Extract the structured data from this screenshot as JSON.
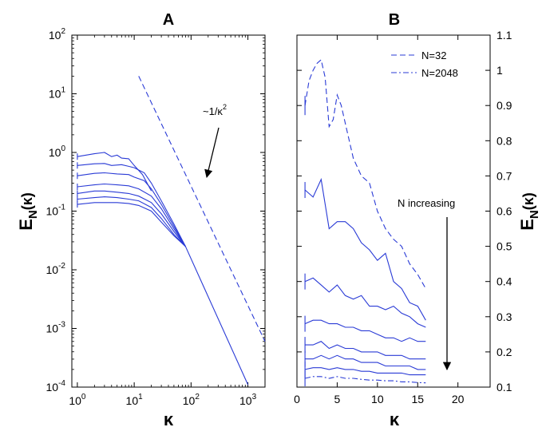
{
  "figure": {
    "panel_a_title": "A",
    "panel_b_title": "B",
    "ylabel_main": "E",
    "ylabel_sub": "N",
    "ylabel_paren": "(κ)",
    "xlabel": "κ",
    "annotation_scaling_prefix": "~1/κ",
    "annotation_scaling_exp": "2",
    "annotation_trend": "N increasing",
    "legend": [
      "N=32",
      "N=2048"
    ],
    "colors": {
      "curves": "#2a3bd6",
      "axes": "#000000"
    }
  },
  "chart_data": [
    {
      "panel": "A",
      "type": "line",
      "xscale": "log",
      "yscale": "log",
      "xlim": [
        0.8,
        2000
      ],
      "ylim": [
        0.0001,
        100
      ],
      "x_ticks": [
        {
          "base": "10",
          "exp": "0",
          "v": 1
        },
        {
          "base": "10",
          "exp": "1",
          "v": 10
        },
        {
          "base": "10",
          "exp": "2",
          "v": 100
        },
        {
          "base": "10",
          "exp": "3",
          "v": 1000
        }
      ],
      "y_ticks": [
        {
          "base": "10",
          "exp": "-4",
          "v": 0.0001
        },
        {
          "base": "10",
          "exp": "-3",
          "v": 0.001
        },
        {
          "base": "10",
          "exp": "-2",
          "v": 0.01
        },
        {
          "base": "10",
          "exp": "-1",
          "v": 0.1
        },
        {
          "base": "10",
          "exp": "0",
          "v": 1
        },
        {
          "base": "10",
          "exp": "1",
          "v": 10
        },
        {
          "base": "10",
          "exp": "2",
          "v": 100
        }
      ],
      "reference_line": {
        "style": "dashed",
        "x": [
          12,
          2000
        ],
        "y": [
          20,
          0.0006
        ]
      },
      "series": [
        {
          "style": "solid",
          "x": [
            1,
            2,
            3,
            4,
            5,
            6,
            8,
            10,
            14,
            20
          ],
          "y": [
            0.85,
            0.95,
            1.0,
            0.85,
            0.9,
            0.8,
            0.78,
            0.6,
            0.42,
            0.22
          ]
        },
        {
          "style": "solid",
          "x": [
            1,
            2,
            3,
            4,
            6,
            8,
            10,
            15,
            20,
            30,
            50,
            80
          ],
          "y": [
            0.6,
            0.64,
            0.65,
            0.6,
            0.62,
            0.58,
            0.55,
            0.45,
            0.3,
            0.15,
            0.06,
            0.025
          ]
        },
        {
          "style": "solid",
          "x": [
            1,
            2,
            3,
            5,
            8,
            10,
            15,
            20,
            30,
            50,
            80
          ],
          "y": [
            0.4,
            0.44,
            0.45,
            0.43,
            0.42,
            0.38,
            0.33,
            0.24,
            0.13,
            0.055,
            0.025
          ]
        },
        {
          "style": "solid",
          "x": [
            1,
            2,
            3,
            5,
            8,
            12,
            20,
            30,
            50,
            80
          ],
          "y": [
            0.26,
            0.28,
            0.29,
            0.28,
            0.27,
            0.24,
            0.18,
            0.11,
            0.05,
            0.025
          ]
        },
        {
          "style": "solid",
          "x": [
            1,
            2,
            3,
            5,
            8,
            12,
            20,
            30,
            50,
            80
          ],
          "y": [
            0.2,
            0.22,
            0.22,
            0.21,
            0.2,
            0.18,
            0.14,
            0.09,
            0.045,
            0.025
          ]
        },
        {
          "style": "solid",
          "x": [
            1,
            2,
            3,
            5,
            8,
            12,
            20,
            30,
            50,
            80
          ],
          "y": [
            0.16,
            0.17,
            0.175,
            0.17,
            0.16,
            0.15,
            0.115,
            0.075,
            0.04,
            0.025
          ]
        },
        {
          "style": "solid",
          "x": [
            1,
            2,
            3,
            5,
            8,
            12,
            20,
            30,
            50,
            80,
            1000
          ],
          "y": [
            0.13,
            0.14,
            0.14,
            0.14,
            0.135,
            0.125,
            0.1,
            0.065,
            0.038,
            0.025,
            0.00011
          ]
        }
      ]
    },
    {
      "panel": "B",
      "type": "line",
      "xlim": [
        0,
        24
      ],
      "ylim": [
        0.1,
        1.1
      ],
      "x_ticks": [
        "0",
        "5",
        "10",
        "15",
        "20"
      ],
      "y_ticks": [
        "0.1",
        "0.2",
        "0.3",
        "0.4",
        "0.5",
        "0.6",
        "0.7",
        "0.8",
        "0.9",
        "1",
        "1.1"
      ],
      "series": [
        {
          "name": "N=32",
          "style": "dashed",
          "x": [
            1,
            1.5,
            2,
            2.5,
            3,
            3.5,
            4,
            4.5,
            5,
            5.5,
            6,
            7,
            8,
            9,
            10,
            11,
            12,
            13,
            14,
            15,
            16
          ],
          "y": [
            0.9,
            0.97,
            1.0,
            1.02,
            1.03,
            0.98,
            0.84,
            0.86,
            0.93,
            0.9,
            0.85,
            0.75,
            0.7,
            0.68,
            0.6,
            0.55,
            0.52,
            0.5,
            0.45,
            0.42,
            0.38
          ]
        },
        {
          "style": "solid",
          "x": [
            1,
            2,
            3,
            4,
            5,
            6,
            7,
            8,
            9,
            10,
            11,
            12,
            13,
            14,
            15,
            16
          ],
          "y": [
            0.66,
            0.64,
            0.69,
            0.55,
            0.57,
            0.57,
            0.55,
            0.51,
            0.49,
            0.46,
            0.48,
            0.4,
            0.38,
            0.34,
            0.33,
            0.29
          ]
        },
        {
          "style": "solid",
          "x": [
            1,
            2,
            3,
            4,
            5,
            6,
            7,
            8,
            9,
            10,
            11,
            12,
            13,
            14,
            15,
            16
          ],
          "y": [
            0.4,
            0.41,
            0.39,
            0.37,
            0.39,
            0.36,
            0.35,
            0.36,
            0.33,
            0.33,
            0.32,
            0.33,
            0.31,
            0.3,
            0.28,
            0.27
          ]
        },
        {
          "style": "solid",
          "x": [
            1,
            2,
            3,
            4,
            5,
            6,
            7,
            8,
            9,
            10,
            11,
            12,
            13,
            14,
            15,
            16
          ],
          "y": [
            0.28,
            0.29,
            0.29,
            0.28,
            0.28,
            0.27,
            0.27,
            0.26,
            0.26,
            0.25,
            0.24,
            0.24,
            0.23,
            0.24,
            0.23,
            0.23
          ]
        },
        {
          "style": "solid",
          "x": [
            1,
            2,
            3,
            4,
            5,
            6,
            7,
            8,
            9,
            10,
            11,
            12,
            13,
            14,
            15,
            16
          ],
          "y": [
            0.22,
            0.22,
            0.23,
            0.21,
            0.22,
            0.21,
            0.21,
            0.2,
            0.2,
            0.2,
            0.19,
            0.19,
            0.19,
            0.18,
            0.18,
            0.18
          ]
        },
        {
          "style": "solid",
          "x": [
            1,
            2,
            3,
            4,
            5,
            6,
            7,
            8,
            9,
            10,
            11,
            12,
            13,
            14,
            15,
            16
          ],
          "y": [
            0.18,
            0.18,
            0.19,
            0.18,
            0.19,
            0.18,
            0.18,
            0.17,
            0.17,
            0.17,
            0.16,
            0.16,
            0.16,
            0.16,
            0.15,
            0.15
          ]
        },
        {
          "style": "solid",
          "x": [
            1,
            2,
            3,
            4,
            5,
            6,
            7,
            8,
            9,
            10,
            11,
            12,
            13,
            14,
            15,
            16
          ],
          "y": [
            0.15,
            0.155,
            0.155,
            0.15,
            0.155,
            0.15,
            0.15,
            0.145,
            0.145,
            0.14,
            0.14,
            0.14,
            0.14,
            0.135,
            0.135,
            0.135
          ]
        },
        {
          "name": "N=2048",
          "style": "dashdot",
          "x": [
            1,
            2,
            3,
            4,
            5,
            6,
            7,
            8,
            9,
            10,
            11,
            12,
            13,
            14,
            15,
            16
          ],
          "y": [
            0.125,
            0.13,
            0.13,
            0.125,
            0.13,
            0.125,
            0.125,
            0.122,
            0.12,
            0.12,
            0.118,
            0.118,
            0.115,
            0.115,
            0.113,
            0.112
          ]
        }
      ]
    }
  ]
}
